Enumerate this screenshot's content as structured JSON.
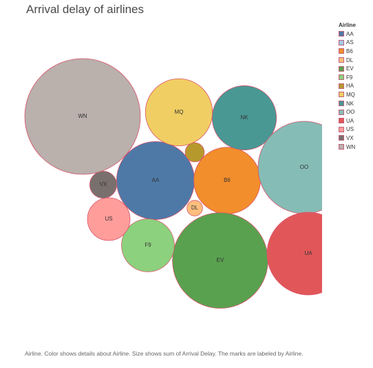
{
  "chart_data": {
    "type": "packed-bubble",
    "title": "Arrival delay of airlines",
    "legend": {
      "title": "Airline",
      "position": "right"
    },
    "caption": "Airline.  Color shows details about Airline.  Size shows sum of Arrival Delay.  The marks are labeled by Airline.",
    "series": [
      {
        "name": "AA",
        "value": 100,
        "color": "#4e79a7",
        "label": "AA"
      },
      {
        "name": "AS",
        "value": 0,
        "color": "#a0cbe8",
        "label": ""
      },
      {
        "name": "B6",
        "value": 73,
        "color": "#f28e2b",
        "label": "B6"
      },
      {
        "name": "DL",
        "value": 4,
        "color": "#ffbe7d",
        "label": "DL"
      },
      {
        "name": "EV",
        "value": 150,
        "color": "#59a14f",
        "label": "EV"
      },
      {
        "name": "F9",
        "value": 46,
        "color": "#8cd17d",
        "label": "F9"
      },
      {
        "name": "HA",
        "value": 6,
        "color": "#b6992d",
        "label": ""
      },
      {
        "name": "MQ",
        "value": 74,
        "color": "#f1ce63",
        "label": "MQ"
      },
      {
        "name": "NK",
        "value": 68,
        "color": "#499894",
        "label": "NK"
      },
      {
        "name": "OO",
        "value": 140,
        "color": "#86bcb6",
        "label": "OO"
      },
      {
        "name": "UA",
        "value": 112,
        "color": "#e15759",
        "label": "UA"
      },
      {
        "name": "US",
        "value": 30,
        "color": "#ff9d9a",
        "label": "US"
      },
      {
        "name": "VX",
        "value": 12,
        "color": "#79706e",
        "label": "VX"
      },
      {
        "name": "WN",
        "value": 220,
        "color": "#bab0ac",
        "label": "WN"
      }
    ]
  }
}
